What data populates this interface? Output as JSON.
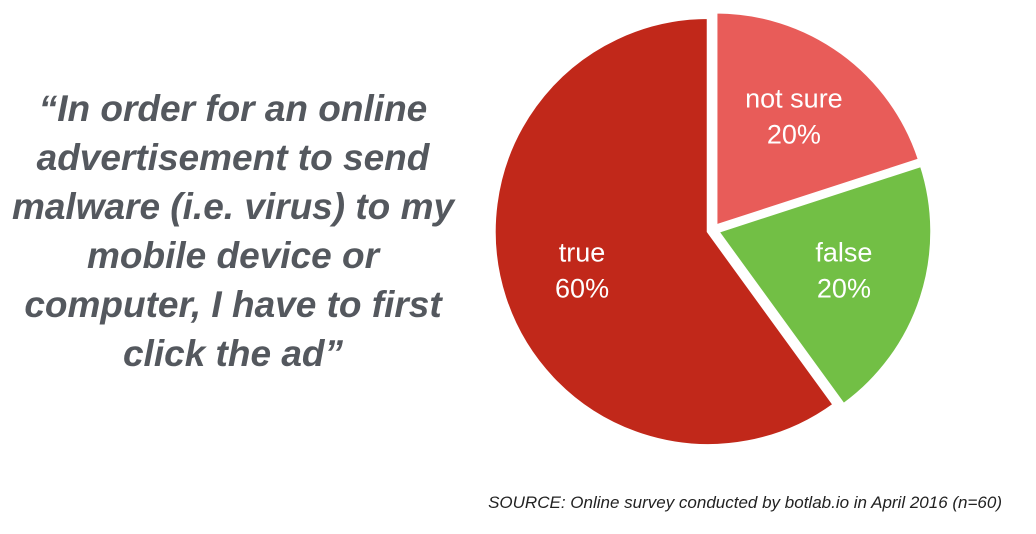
{
  "chart_data": {
    "type": "pie",
    "quote": "“In order for an online advertisement to send malware (i.e. virus) to my mobile device or computer, I have to first click the ad”",
    "categories": [
      "not sure",
      "false",
      "true"
    ],
    "values": [
      20,
      20,
      60
    ],
    "value_labels": [
      "20%",
      "20%",
      "60%"
    ],
    "colors": [
      "#e85c59",
      "#72bf45",
      "#c1281a"
    ],
    "source": "SOURCE: Online survey conducted by botlab.io in April 2016 (n=60)"
  }
}
